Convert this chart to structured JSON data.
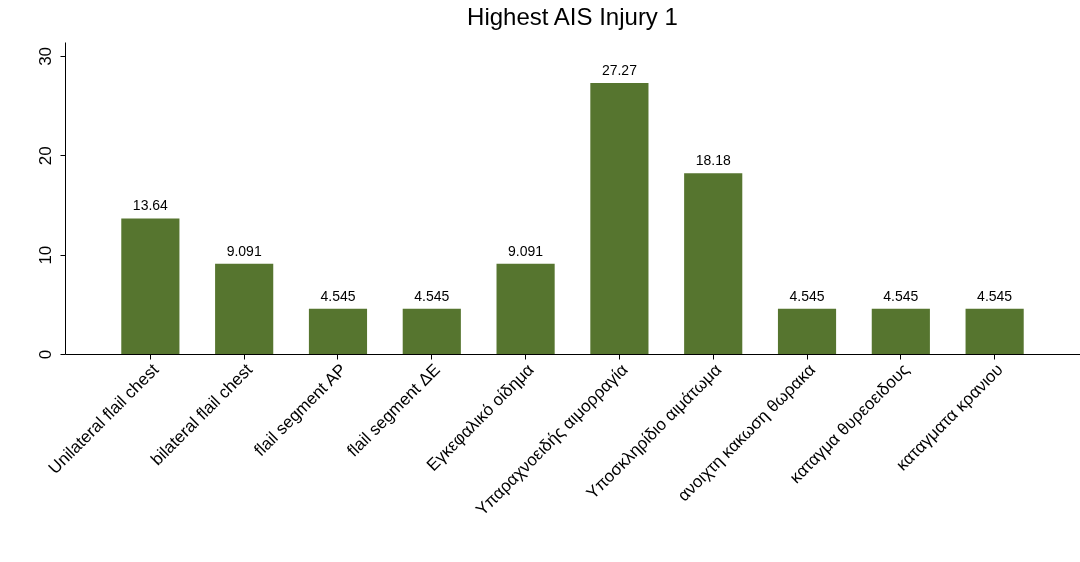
{
  "chart_data": {
    "type": "bar",
    "title": "Highest AIS Injury 1",
    "categories": [
      "Unilateral flail chest",
      "bilateral flail chest",
      "flail segment AP",
      "flail segment ΔΕ",
      "Εγκεφαλικό οίδημα",
      "Υπαραχνοειδής αιμορραγία",
      "Υποσκληρίδιο αιμάτωμα",
      "ανοιχτη κακωση θωρακα",
      "καταγμα θυρεοειδους",
      "καταγματα κρανιου"
    ],
    "values": [
      13.64,
      9.091,
      4.545,
      4.545,
      9.091,
      27.27,
      18.18,
      4.545,
      4.545,
      4.545
    ],
    "color": "#56752f",
    "ylim": [
      0,
      31.4
    ],
    "yticks": [
      0,
      10,
      20,
      30
    ],
    "grid": false,
    "data_labels": true
  }
}
